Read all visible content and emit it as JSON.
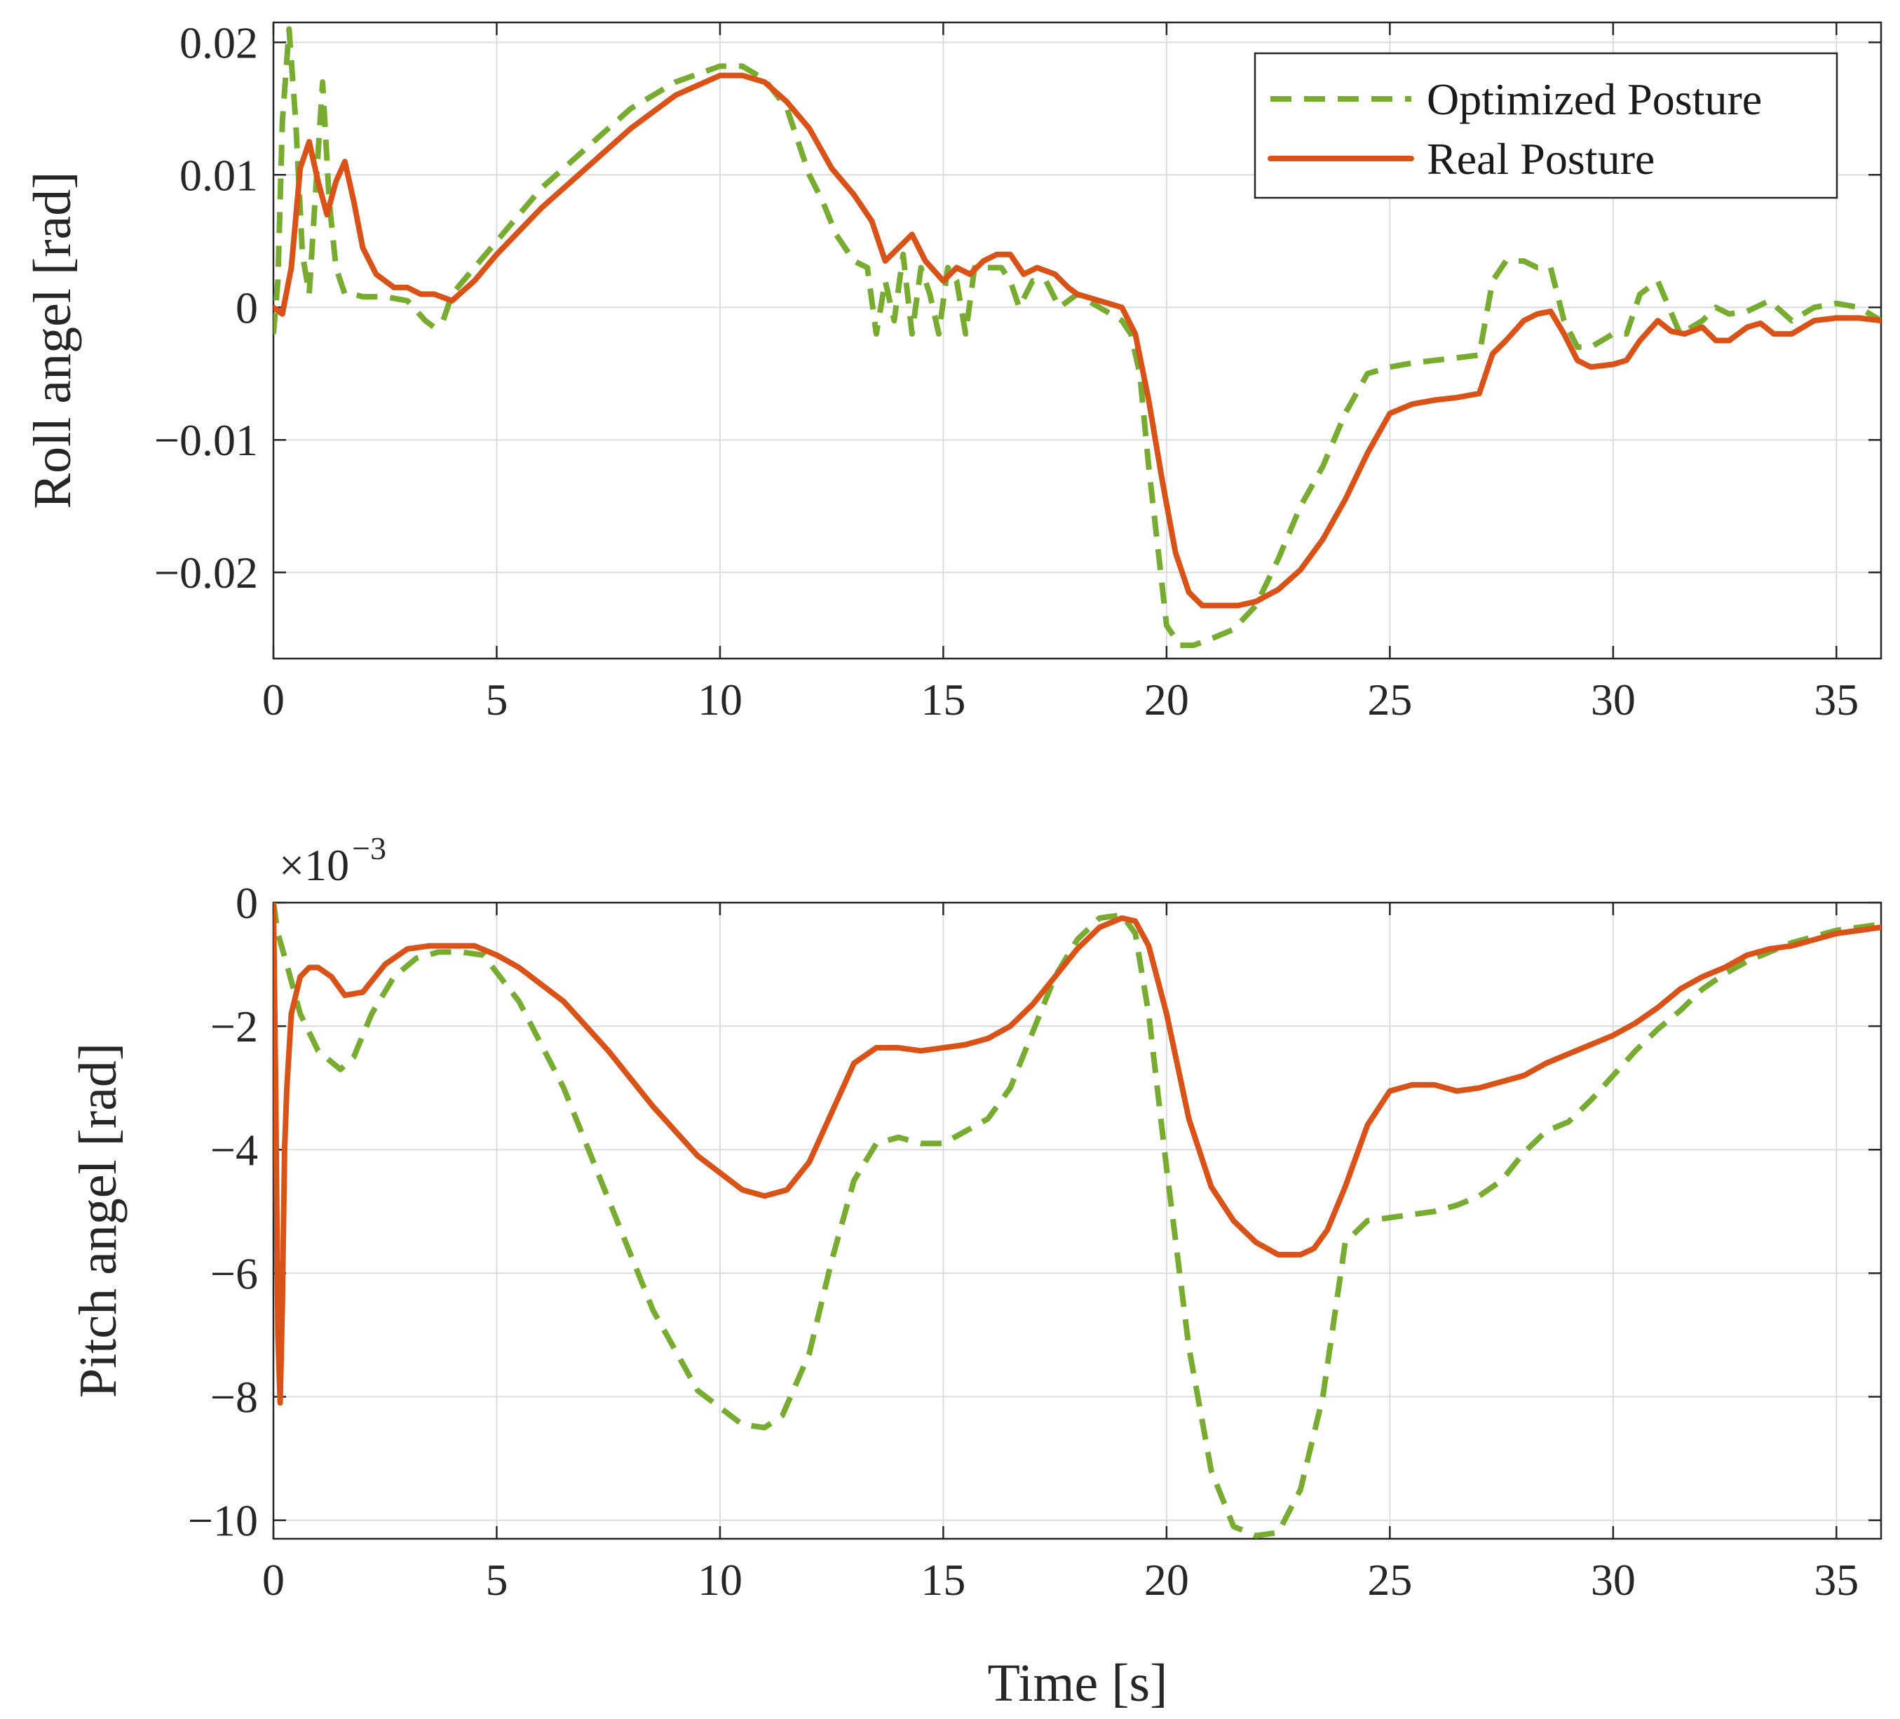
{
  "colors": {
    "optimized": "#77ac30",
    "real": "#d95319",
    "axis": "#262626",
    "grid": "#dcdcdc"
  },
  "chart_data": [
    {
      "type": "line",
      "title": "",
      "xlabel": "",
      "ylabel": "Roll angel [rad]",
      "xlim": [
        0,
        36
      ],
      "ylim": [
        -0.0265,
        0.0215
      ],
      "xticks": [
        0,
        5,
        10,
        15,
        20,
        25,
        30,
        35
      ],
      "xtick_labels": [
        "0",
        "5",
        "10",
        "15",
        "20",
        "25",
        "30",
        "35"
      ],
      "yticks": [
        -0.02,
        -0.01,
        0,
        0.01,
        0.02
      ],
      "ytick_labels": [
        "−0.02",
        "−0.01",
        "0",
        "0.01",
        "0.02"
      ],
      "grid": true,
      "legend": {
        "position": "top-right",
        "entries": [
          "Optimized Posture",
          "Real Posture"
        ]
      },
      "series": [
        {
          "name": "Optimized Posture",
          "style": "dashed",
          "x": [
            0,
            0.1,
            0.2,
            0.35,
            0.5,
            0.65,
            0.8,
            0.95,
            1.1,
            1.25,
            1.4,
            1.6,
            1.8,
            2.0,
            2.5,
            3.0,
            3.4,
            3.6,
            3.8,
            4.0,
            4.5,
            5,
            6,
            7,
            8,
            9,
            10,
            10.5,
            11,
            11.5,
            12,
            12.3,
            12.6,
            13,
            13.3,
            13.5,
            13.7,
            13.9,
            14.1,
            14.3,
            14.5,
            14.7,
            14.9,
            15.1,
            15.3,
            15.5,
            15.7,
            16,
            16.3,
            16.5,
            16.7,
            17,
            17.3,
            17.6,
            18,
            18.5,
            19,
            19.2,
            19.4,
            19.6,
            19.8,
            20,
            20.3,
            20.6,
            21,
            21.5,
            22,
            22.5,
            23,
            23.5,
            24,
            24.5,
            25,
            25.5,
            26,
            26.5,
            27,
            27.3,
            27.6,
            28,
            28.3,
            28.6,
            28.9,
            29.2,
            29.5,
            30,
            30.3,
            30.6,
            31,
            31.5,
            32,
            32.3,
            32.6,
            33,
            33.5,
            34,
            34.5,
            35,
            35.5,
            36
          ],
          "y": [
            -0.002,
            0.002,
            0.014,
            0.021,
            0.014,
            0.004,
            0.001,
            0.009,
            0.017,
            0.008,
            0.003,
            0.001,
            0.001,
            0.0008,
            0.0008,
            0.0005,
            -0.001,
            -0.0015,
            -0.001,
            0.001,
            0.003,
            0.005,
            0.009,
            0.012,
            0.015,
            0.017,
            0.0182,
            0.0182,
            0.0172,
            0.015,
            0.01,
            0.008,
            0.0055,
            0.0035,
            0.003,
            -0.002,
            0.002,
            -0.001,
            0.004,
            -0.002,
            0.003,
            0.001,
            -0.002,
            0.003,
            0.002,
            -0.002,
            0.003,
            0.003,
            0.003,
            0.002,
            0,
            0.002,
            0.002,
            0,
            0.001,
            0,
            -0.001,
            -0.002,
            -0.005,
            -0.012,
            -0.018,
            -0.024,
            -0.0255,
            -0.0255,
            -0.025,
            -0.0243,
            -0.0225,
            -0.019,
            -0.015,
            -0.012,
            -0.008,
            -0.005,
            -0.0045,
            -0.0042,
            -0.004,
            -0.0038,
            -0.0036,
            0.002,
            0.0035,
            0.0035,
            0.003,
            0.003,
            -0.001,
            -0.003,
            -0.003,
            -0.002,
            -0.002,
            0.001,
            0.002,
            -0.002,
            -0.001,
            0,
            -0.0005,
            -0.0003,
            0.0005,
            -0.001,
            0,
            0.0003,
            0,
            -0.001
          ]
        },
        {
          "name": "Real Posture",
          "style": "solid",
          "x": [
            0,
            0.2,
            0.4,
            0.6,
            0.8,
            1.0,
            1.2,
            1.4,
            1.6,
            1.8,
            2.0,
            2.3,
            2.7,
            3.0,
            3.3,
            3.6,
            4.0,
            4.5,
            5,
            6,
            7,
            8,
            9,
            10,
            10.5,
            11,
            11.5,
            12,
            12.5,
            13,
            13.4,
            13.7,
            14,
            14.3,
            14.6,
            15,
            15.3,
            15.6,
            15.9,
            16.2,
            16.5,
            16.8,
            17.1,
            17.5,
            17.8,
            18,
            18.5,
            19,
            19.3,
            19.6,
            19.9,
            20.2,
            20.5,
            20.8,
            21.2,
            21.6,
            22,
            22.5,
            23,
            23.5,
            24,
            24.5,
            25,
            25.5,
            26,
            26.5,
            27,
            27.3,
            27.6,
            28,
            28.3,
            28.6,
            28.9,
            29.2,
            29.5,
            30,
            30.3,
            30.6,
            31,
            31.3,
            31.6,
            32,
            32.3,
            32.6,
            33,
            33.3,
            33.6,
            34,
            34.5,
            35,
            35.5,
            36
          ],
          "y": [
            0,
            -0.0005,
            0.003,
            0.0105,
            0.0125,
            0.0095,
            0.007,
            0.0095,
            0.011,
            0.008,
            0.0045,
            0.0025,
            0.0015,
            0.0015,
            0.001,
            0.001,
            0.0005,
            0.002,
            0.004,
            0.0075,
            0.0105,
            0.0135,
            0.016,
            0.0175,
            0.0175,
            0.017,
            0.0155,
            0.0135,
            0.0105,
            0.0085,
            0.0065,
            0.0035,
            0.0045,
            0.0055,
            0.0035,
            0.002,
            0.003,
            0.0025,
            0.0035,
            0.004,
            0.004,
            0.0025,
            0.003,
            0.0025,
            0.0015,
            0.001,
            0.0005,
            0,
            -0.002,
            -0.007,
            -0.013,
            -0.0185,
            -0.0215,
            -0.0225,
            -0.0225,
            -0.0225,
            -0.0222,
            -0.0213,
            -0.0198,
            -0.0175,
            -0.0145,
            -0.011,
            -0.008,
            -0.0073,
            -0.007,
            -0.0068,
            -0.0065,
            -0.0035,
            -0.0025,
            -0.001,
            -0.0005,
            -0.0003,
            -0.002,
            -0.004,
            -0.0045,
            -0.0043,
            -0.004,
            -0.0025,
            -0.001,
            -0.0018,
            -0.002,
            -0.0015,
            -0.0025,
            -0.0025,
            -0.0015,
            -0.0012,
            -0.002,
            -0.002,
            -0.001,
            -0.0008,
            -0.0008,
            -0.001
          ]
        }
      ]
    },
    {
      "type": "line",
      "title": "",
      "xlabel": "Time [s]",
      "ylabel": "Pitch angel [rad]",
      "exponent_label": {
        "prefix": "×10",
        "power": "−3"
      },
      "xlim": [
        0,
        36
      ],
      "ylim": [
        -10.3,
        0
      ],
      "xticks": [
        0,
        5,
        10,
        15,
        20,
        25,
        30,
        35
      ],
      "xtick_labels": [
        "0",
        "5",
        "10",
        "15",
        "20",
        "25",
        "30",
        "35"
      ],
      "yticks": [
        -10,
        -8,
        -6,
        -4,
        -2,
        0
      ],
      "ytick_labels": [
        "−10",
        "−8",
        "−6",
        "−4",
        "−2",
        "0"
      ],
      "grid": true,
      "series": [
        {
          "name": "Optimized Posture",
          "style": "dashed",
          "x": [
            0,
            0.1,
            0.3,
            0.6,
            1.0,
            1.5,
            1.8,
            2.2,
            2.7,
            3.2,
            3.7,
            4.2,
            4.7,
            5.5,
            6.5,
            7.5,
            8.5,
            9.5,
            10.5,
            11.0,
            11.4,
            12.0,
            12.5,
            13.0,
            13.5,
            14.0,
            14.5,
            15.0,
            15.5,
            16.0,
            16.5,
            17.0,
            17.5,
            18.0,
            18.5,
            19.0,
            19.3,
            19.6,
            20.0,
            20.5,
            21.0,
            21.5,
            22.0,
            22.5,
            23.0,
            23.5,
            24.0,
            24.5,
            25.0,
            25.5,
            26.0,
            26.5,
            27.0,
            27.5,
            28.0,
            28.5,
            29.0,
            29.5,
            30.0,
            30.5,
            31.0,
            31.5,
            32.0,
            32.5,
            33.0,
            33.5,
            34.0,
            34.5,
            35.0,
            35.5,
            36.0
          ],
          "y": [
            0,
            -0.5,
            -1.0,
            -1.8,
            -2.4,
            -2.7,
            -2.5,
            -1.8,
            -1.2,
            -0.9,
            -0.8,
            -0.8,
            -0.85,
            -1.6,
            -3.0,
            -4.8,
            -6.6,
            -7.9,
            -8.45,
            -8.5,
            -8.3,
            -7.3,
            -5.8,
            -4.5,
            -3.9,
            -3.8,
            -3.9,
            -3.9,
            -3.7,
            -3.5,
            -3.0,
            -2.1,
            -1.2,
            -0.6,
            -0.25,
            -0.2,
            -0.5,
            -1.8,
            -4.3,
            -7.2,
            -9.2,
            -10.1,
            -10.25,
            -10.2,
            -9.5,
            -8.0,
            -5.5,
            -5.15,
            -5.1,
            -5.05,
            -5.0,
            -4.9,
            -4.75,
            -4.5,
            -4.05,
            -3.7,
            -3.55,
            -3.2,
            -2.8,
            -2.4,
            -2.05,
            -1.75,
            -1.4,
            -1.15,
            -0.95,
            -0.8,
            -0.65,
            -0.55,
            -0.45,
            -0.4,
            -0.35
          ]
        },
        {
          "name": "Real Posture",
          "style": "solid",
          "x": [
            0,
            0.05,
            0.1,
            0.15,
            0.2,
            0.25,
            0.3,
            0.4,
            0.6,
            0.8,
            1.0,
            1.3,
            1.6,
            2.0,
            2.5,
            3.0,
            3.5,
            4.0,
            4.5,
            5.0,
            5.5,
            6.5,
            7.5,
            8.5,
            9.5,
            10.5,
            11.0,
            11.5,
            12.0,
            12.5,
            13.0,
            13.5,
            14.0,
            14.5,
            15.0,
            15.5,
            16.0,
            16.5,
            17.0,
            17.5,
            18.0,
            18.5,
            19.0,
            19.3,
            19.6,
            20.0,
            20.5,
            21.0,
            21.5,
            22.0,
            22.5,
            23.0,
            23.3,
            23.6,
            24.0,
            24.5,
            25.0,
            25.5,
            26.0,
            26.5,
            27.0,
            27.5,
            28.0,
            28.5,
            29.0,
            29.5,
            30.0,
            30.5,
            31.0,
            31.5,
            32.0,
            32.5,
            33.0,
            33.5,
            34.0,
            34.5,
            35.0,
            35.5,
            36.0
          ],
          "y": [
            0,
            -3.0,
            -7.0,
            -8.1,
            -6.5,
            -4.0,
            -3.0,
            -1.8,
            -1.2,
            -1.05,
            -1.05,
            -1.2,
            -1.5,
            -1.45,
            -1.0,
            -0.75,
            -0.7,
            -0.7,
            -0.7,
            -0.85,
            -1.05,
            -1.6,
            -2.4,
            -3.3,
            -4.1,
            -4.65,
            -4.75,
            -4.65,
            -4.2,
            -3.4,
            -2.6,
            -2.35,
            -2.35,
            -2.4,
            -2.35,
            -2.3,
            -2.2,
            -2.0,
            -1.65,
            -1.2,
            -0.75,
            -0.4,
            -0.25,
            -0.3,
            -0.7,
            -1.8,
            -3.5,
            -4.6,
            -5.15,
            -5.5,
            -5.7,
            -5.7,
            -5.6,
            -5.3,
            -4.6,
            -3.6,
            -3.05,
            -2.95,
            -2.95,
            -3.05,
            -3.0,
            -2.9,
            -2.8,
            -2.6,
            -2.45,
            -2.3,
            -2.15,
            -1.95,
            -1.7,
            -1.4,
            -1.2,
            -1.05,
            -0.85,
            -0.75,
            -0.7,
            -0.6,
            -0.5,
            -0.45,
            -0.4
          ]
        }
      ]
    }
  ]
}
